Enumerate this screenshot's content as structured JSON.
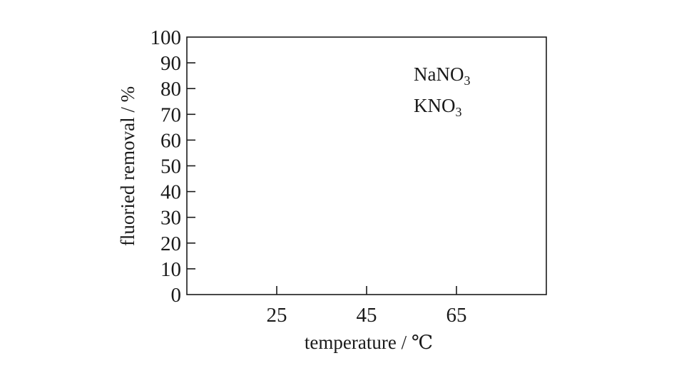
{
  "chart_data": {
    "type": "line",
    "title": "",
    "xlabel": "temperature / ℃",
    "ylabel": "fluoried removal / %",
    "x_ticks": [
      25,
      45,
      65
    ],
    "y_ticks": [
      0,
      10,
      20,
      30,
      40,
      50,
      60,
      70,
      80,
      90,
      100
    ],
    "xlim": [
      5,
      85
    ],
    "ylim": [
      0,
      100
    ],
    "grid": false,
    "legend": {
      "placement": "top-right",
      "entries": [
        {
          "main": "NaNO",
          "sub": "3"
        },
        {
          "main": "KNO",
          "sub": "3"
        }
      ]
    },
    "series": [
      {
        "name": "NaNO3",
        "x": [],
        "y": []
      },
      {
        "name": "KNO3",
        "x": [],
        "y": []
      }
    ]
  }
}
